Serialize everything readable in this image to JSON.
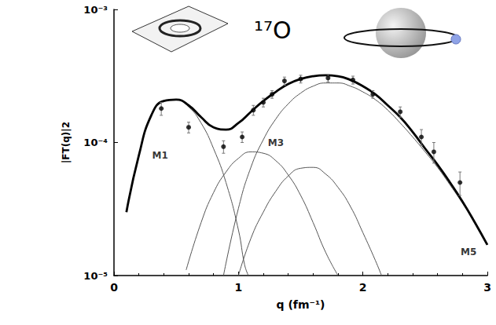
{
  "chart_data": {
    "type": "line",
    "title": "¹⁷O",
    "x_label": "q (fm⁻¹)",
    "y_label": "|FT(q)|2",
    "log": "y",
    "grid": false,
    "xlim": [
      0,
      3
    ],
    "xticks": [
      0,
      1,
      2,
      3
    ],
    "ylim": [
      1e-05,
      0.001
    ],
    "yticks": [
      {
        "value": 1e-05,
        "label": "10⁻⁵"
      },
      {
        "value": 0.0001,
        "label": "10⁻⁴"
      },
      {
        "value": 0.001,
        "label": "10⁻³"
      }
    ],
    "annotations": [
      {
        "text": "M1",
        "x": 0.37,
        "y": 8e-05
      },
      {
        "text": "M3",
        "x": 1.3,
        "y": 0.0001
      },
      {
        "text": "M5",
        "x": 2.85,
        "y": 1.5e-05
      }
    ],
    "series": [
      {
        "type": "line",
        "color": "#000000",
        "line_style": "solid",
        "x": [
          0.1,
          0.2,
          0.3,
          0.4,
          0.5,
          0.6,
          0.7,
          0.8,
          0.9,
          1.0,
          1.1,
          1.2,
          1.3,
          1.4,
          1.5,
          1.6,
          1.7,
          1.8,
          1.9,
          2.0,
          2.1,
          2.2,
          2.3,
          2.4,
          2.5,
          2.6,
          2.7,
          2.8,
          2.9,
          3.0
        ],
        "values": [
          3e-05,
          8e-05,
          0.00016,
          0.000205,
          0.00021,
          0.00019,
          0.000155,
          0.00013,
          0.000125,
          0.00014,
          0.00017,
          0.000205,
          0.00024,
          0.000275,
          0.0003,
          0.000315,
          0.00032,
          0.000315,
          0.000295,
          0.000265,
          0.00023,
          0.00019,
          0.000155,
          0.00012,
          9e-05,
          6.8e-05,
          5e-05,
          3.6e-05,
          2.5e-05,
          1.7e-05
        ]
      },
      {
        "type": "line",
        "color": "#555555",
        "line_style": "solid",
        "x": [
          0.1,
          0.2,
          0.3,
          0.4,
          0.5,
          0.6,
          0.7,
          0.8,
          0.9,
          1.0,
          1.05,
          1.08
        ],
        "values": [
          3e-05,
          8e-05,
          0.00016,
          0.000205,
          0.00021,
          0.000185,
          0.00014,
          9e-05,
          5e-05,
          2.2e-05,
          1.2e-05,
          1e-05
        ]
      },
      {
        "type": "line",
        "color": "#555555",
        "line_style": "solid",
        "x": [
          0.58,
          0.7,
          0.8,
          0.9,
          1.0,
          1.1,
          1.2,
          1.3,
          1.4,
          1.5,
          1.6,
          1.7,
          1.8
        ],
        "values": [
          1.1e-05,
          2.5e-05,
          4.2e-05,
          6e-05,
          7.6e-05,
          8.5e-05,
          8.3e-05,
          7.3e-05,
          5.7e-05,
          4e-05,
          2.5e-05,
          1.5e-05,
          1e-05
        ]
      },
      {
        "type": "line",
        "color": "#555555",
        "line_style": "solid",
        "x": [
          1.0,
          1.1,
          1.2,
          1.3,
          1.4,
          1.5,
          1.6,
          1.7,
          1.8,
          1.9,
          2.0,
          2.1,
          2.15
        ],
        "values": [
          1e-05,
          1.9e-05,
          3e-05,
          4.3e-05,
          5.6e-05,
          6.4e-05,
          6.5e-05,
          5.8e-05,
          4.6e-05,
          3.3e-05,
          2.1e-05,
          1.3e-05,
          1e-05
        ]
      },
      {
        "type": "line",
        "color": "#555555",
        "line_style": "solid",
        "x": [
          0.88,
          1.0,
          1.1,
          1.2,
          1.3,
          1.4,
          1.5,
          1.6,
          1.7,
          1.8,
          1.9,
          2.0,
          2.1,
          2.2,
          2.3,
          2.4,
          2.5,
          2.6,
          2.7,
          2.8,
          2.9,
          3.0
        ],
        "values": [
          1e-05,
          3.2e-05,
          6.5e-05,
          0.000105,
          0.00015,
          0.000195,
          0.000235,
          0.000265,
          0.00028,
          0.00028,
          0.000265,
          0.00024,
          0.00021,
          0.000175,
          0.00014,
          0.00011,
          8.5e-05,
          6.5e-05,
          4.8e-05,
          3.5e-05,
          2.5e-05,
          1.7e-05
        ]
      },
      {
        "type": "scatter",
        "color": "#000000",
        "marker": "circle",
        "x": [
          0.38,
          0.6,
          0.88,
          1.03,
          1.12,
          1.2,
          1.27,
          1.37,
          1.5,
          1.72,
          1.92,
          2.08,
          2.3,
          2.47,
          2.57,
          2.78
        ],
        "values": [
          0.00018,
          0.00013,
          9.3e-05,
          0.00011,
          0.000175,
          0.0002,
          0.00023,
          0.00029,
          0.0003,
          0.000305,
          0.000295,
          0.00023,
          0.00017,
          0.00011,
          8.5e-05,
          5e-05
        ],
        "errors": [
          2e-05,
          1.2e-05,
          1e-05,
          1e-05,
          1.5e-05,
          1.5e-05,
          1.5e-05,
          2e-05,
          2e-05,
          2e-05,
          2e-05,
          1.5e-05,
          1.5e-05,
          1.5e-05,
          1.5e-05,
          1e-05
        ]
      }
    ]
  }
}
